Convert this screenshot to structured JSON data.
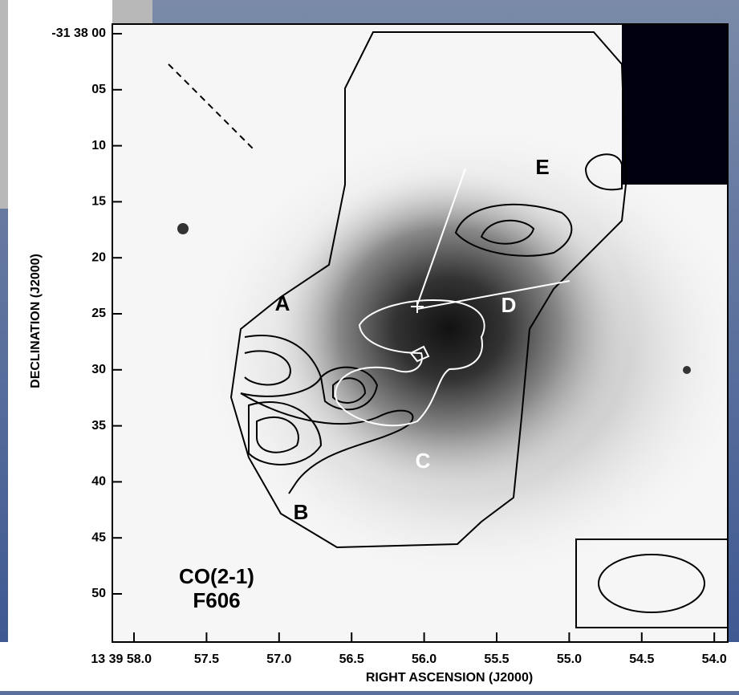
{
  "y_axis": {
    "label": "DECLINATION (J2000)",
    "ticks": [
      "-31 38 00",
      "05",
      "10",
      "15",
      "20",
      "25",
      "30",
      "35",
      "40",
      "45",
      "50"
    ]
  },
  "x_axis": {
    "label": "RIGHT ASCENSION (J2000)",
    "ticks": [
      "13 39 58.0",
      "57.5",
      "57.0",
      "56.5",
      "56.0",
      "55.5",
      "55.0",
      "54.5",
      "54.0"
    ]
  },
  "regions": {
    "A": "A",
    "B": "B",
    "C": "C",
    "D": "D",
    "E": "E"
  },
  "caption": [
    "CO(2-1)",
    "F606"
  ]
}
